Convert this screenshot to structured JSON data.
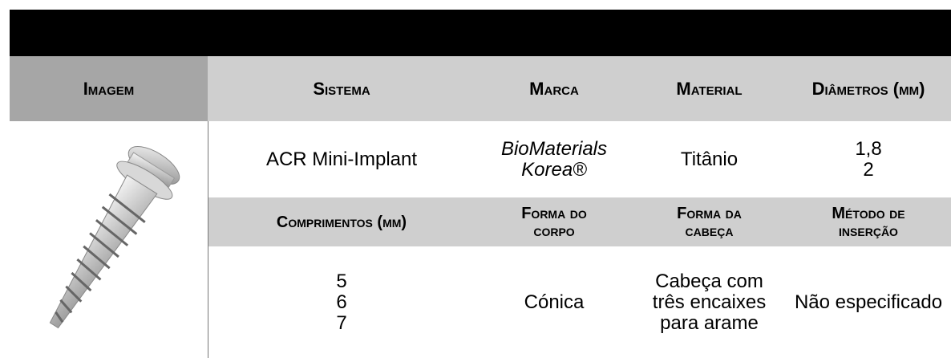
{
  "header": {
    "columns": [
      "Imagem",
      "Sistema",
      "Marca",
      "Material",
      "Diâmetros (mm)"
    ]
  },
  "row1": {
    "sistema": "ACR Mini-Implant",
    "marca": "BioMaterials Korea®",
    "material": "Titânio",
    "diametros": [
      "1,8",
      "2"
    ]
  },
  "subheader": {
    "columns": [
      "Comprimentos (mm)",
      "Forma do corpo",
      "Forma da cabeça",
      "Método de inserção"
    ]
  },
  "row2": {
    "comprimentos": [
      "5",
      "6",
      "7"
    ],
    "forma_corpo": "Cónica",
    "forma_cabeca": "Cabeça com três encaixes para arame",
    "metodo": "Não especificado"
  }
}
